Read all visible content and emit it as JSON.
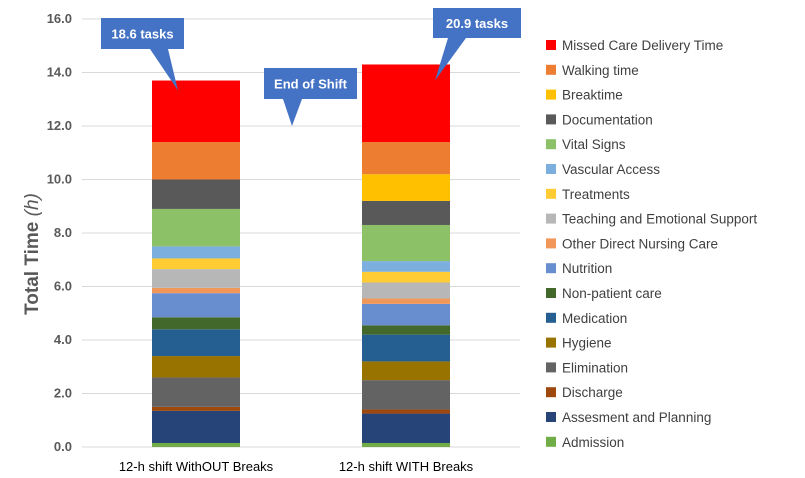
{
  "chart_data": {
    "type": "bar",
    "stacked": true,
    "ylabel": "Total Time",
    "ylabel_unit": "(h)",
    "ylim": [
      0,
      16
    ],
    "yticks": [
      "0.0",
      "2.0",
      "4.0",
      "6.0",
      "8.0",
      "10.0",
      "12.0",
      "14.0",
      "16.0"
    ],
    "ytick_values": [
      0,
      2,
      4,
      6,
      8,
      10,
      12,
      14,
      16
    ],
    "grid": true,
    "legend_position": "right",
    "categories": [
      "12-h shift WithOUT Breaks",
      "12-h shift WITH Breaks"
    ],
    "series": [
      {
        "name": "Admission",
        "color": "#70ad47",
        "values": [
          0.15,
          0.15
        ]
      },
      {
        "name": "Assesment and Planning",
        "color": "#264478",
        "values": [
          1.2,
          1.1
        ]
      },
      {
        "name": "Discharge",
        "color": "#9e480e",
        "values": [
          0.15,
          0.15
        ]
      },
      {
        "name": "Elimination",
        "color": "#636363",
        "values": [
          1.1,
          1.1
        ]
      },
      {
        "name": "Hygiene",
        "color": "#997300",
        "values": [
          0.8,
          0.7
        ]
      },
      {
        "name": "Medication",
        "color": "#255e91",
        "values": [
          1.0,
          1.0
        ]
      },
      {
        "name": "Non-patient care",
        "color": "#43682b",
        "values": [
          0.45,
          0.35
        ]
      },
      {
        "name": "Nutrition",
        "color": "#698ed0",
        "values": [
          0.9,
          0.8
        ]
      },
      {
        "name": "Other Direct Nursing Care",
        "color": "#f1975a",
        "values": [
          0.2,
          0.2
        ]
      },
      {
        "name": "Teaching and Emotional Support",
        "color": "#b7b7b7",
        "values": [
          0.7,
          0.6
        ]
      },
      {
        "name": "Treatments",
        "color": "#ffcd33",
        "values": [
          0.4,
          0.4
        ]
      },
      {
        "name": "Vascular Access",
        "color": "#7cafdd",
        "values": [
          0.45,
          0.4
        ]
      },
      {
        "name": "Vital Signs",
        "color": "#8cc168",
        "values": [
          1.4,
          1.35
        ]
      },
      {
        "name": "Documentation",
        "color": "#595959",
        "values": [
          1.1,
          0.9
        ]
      },
      {
        "name": "Breaktime",
        "color": "#ffc000",
        "values": [
          0,
          1.0
        ]
      },
      {
        "name": "Walking time",
        "color": "#ed7d31",
        "values": [
          1.4,
          1.2
        ]
      },
      {
        "name": "Missed Care Delivery Time",
        "color": "#ff0000",
        "values": [
          2.3,
          2.9
        ]
      }
    ],
    "annotations": [
      {
        "text": "18.6 tasks",
        "target": "12-h shift WithOUT Breaks"
      },
      {
        "text": "End of Shift",
        "target_value": 12
      },
      {
        "text": "20.9 tasks",
        "target": "12-h shift WITH Breaks"
      }
    ],
    "callout_color": "#4472c4"
  }
}
